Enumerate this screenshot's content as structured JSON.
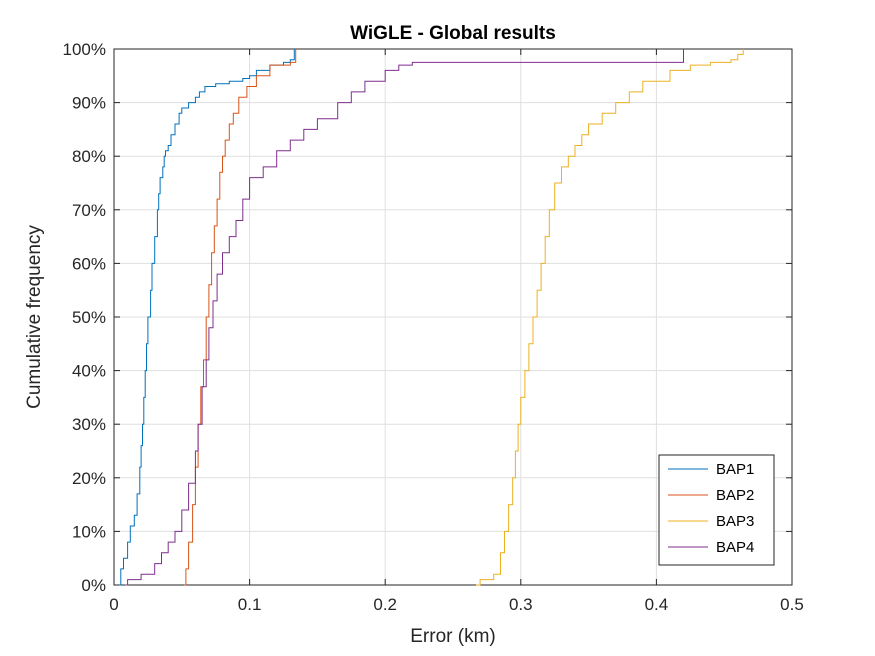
{
  "chart_data": {
    "type": "line",
    "title": "WiGLE - Global results",
    "xlabel": "Error (km)",
    "ylabel": "Cumulative frequency",
    "xlim": [
      0,
      0.5
    ],
    "ylim": [
      0,
      100
    ],
    "xticks": [
      0,
      0.1,
      0.2,
      0.3,
      0.4,
      0.5
    ],
    "xtick_labels": [
      "0",
      "0.1",
      "0.2",
      "0.3",
      "0.4",
      "0.5"
    ],
    "yticks": [
      0,
      10,
      20,
      30,
      40,
      50,
      60,
      70,
      80,
      90,
      100
    ],
    "ytick_labels": [
      "0%",
      "10%",
      "20%",
      "30%",
      "40%",
      "50%",
      "60%",
      "70%",
      "80%",
      "90%",
      "100%"
    ],
    "grid": true,
    "legend": "bottom-right",
    "series": [
      {
        "name": "BAP1",
        "color": "#0072BD",
        "x": [
          0.004,
          0.005,
          0.007,
          0.01,
          0.012,
          0.015,
          0.017,
          0.019,
          0.02,
          0.021,
          0.022,
          0.023,
          0.024,
          0.025,
          0.027,
          0.028,
          0.03,
          0.032,
          0.033,
          0.034,
          0.036,
          0.037,
          0.038,
          0.04,
          0.042,
          0.045,
          0.048,
          0.05,
          0.055,
          0.06,
          0.063,
          0.067,
          0.075,
          0.085,
          0.095,
          0.1,
          0.105,
          0.115,
          0.125,
          0.13,
          0.133
        ],
        "y": [
          0,
          3,
          5,
          8,
          11,
          13,
          17,
          22,
          26,
          30,
          35,
          40,
          45,
          50,
          55,
          60,
          65,
          70,
          73,
          76,
          78,
          80,
          81,
          82,
          84,
          86,
          88,
          89,
          90,
          91,
          92,
          93,
          93.5,
          94,
          94.5,
          95,
          96,
          97,
          97.5,
          98,
          100
        ]
      },
      {
        "name": "BAP2",
        "color": "#D95319",
        "x": [
          0.052,
          0.053,
          0.055,
          0.058,
          0.06,
          0.062,
          0.064,
          0.066,
          0.068,
          0.07,
          0.072,
          0.074,
          0.076,
          0.078,
          0.08,
          0.082,
          0.085,
          0.088,
          0.092,
          0.098,
          0.105,
          0.115,
          0.13,
          0.134
        ],
        "y": [
          0,
          3,
          8,
          15,
          22,
          30,
          37,
          42,
          50,
          56,
          62,
          67,
          72,
          77,
          80,
          83,
          86,
          88,
          91,
          93,
          95,
          97,
          97.5,
          100
        ]
      },
      {
        "name": "BAP3",
        "color": "#EDB120",
        "x": [
          0.267,
          0.27,
          0.28,
          0.285,
          0.288,
          0.291,
          0.294,
          0.296,
          0.298,
          0.3,
          0.303,
          0.306,
          0.309,
          0.312,
          0.315,
          0.318,
          0.321,
          0.325,
          0.33,
          0.335,
          0.34,
          0.345,
          0.35,
          0.36,
          0.37,
          0.38,
          0.39,
          0.41,
          0.425,
          0.44,
          0.455,
          0.46,
          0.464
        ],
        "y": [
          0,
          1,
          2,
          6,
          10,
          15,
          20,
          25,
          30,
          35,
          40,
          45,
          50,
          55,
          60,
          65,
          70,
          75,
          78,
          80,
          82,
          84,
          86,
          88,
          90,
          92,
          94,
          96,
          97,
          97.5,
          98,
          99,
          100
        ]
      },
      {
        "name": "BAP4",
        "color": "#7E2F8E",
        "x": [
          0.008,
          0.01,
          0.02,
          0.03,
          0.035,
          0.04,
          0.045,
          0.05,
          0.055,
          0.06,
          0.062,
          0.065,
          0.068,
          0.07,
          0.073,
          0.076,
          0.08,
          0.085,
          0.09,
          0.095,
          0.1,
          0.11,
          0.12,
          0.13,
          0.14,
          0.15,
          0.165,
          0.175,
          0.185,
          0.2,
          0.21,
          0.22,
          0.3,
          0.4,
          0.42
        ],
        "y": [
          0,
          1,
          2,
          4,
          6,
          8,
          10,
          14,
          19,
          25,
          30,
          37,
          42,
          48,
          53,
          58,
          62,
          65,
          68,
          72,
          76,
          78,
          81,
          83,
          85,
          87,
          90,
          92,
          94,
          96,
          97,
          97.5,
          97.5,
          97.5,
          100
        ]
      }
    ]
  }
}
